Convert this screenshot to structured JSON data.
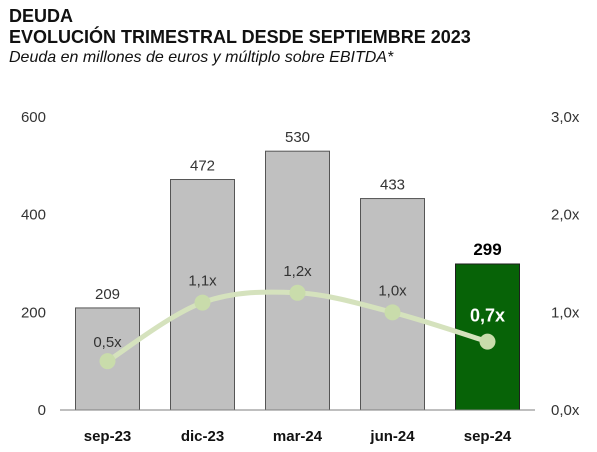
{
  "header": {
    "line1": "DEUDA",
    "line2": "EVOLUCIÓN TRIMESTRAL DESDE SEPTIEMBRE 2023",
    "subtitle": "Deuda en millones de euros y múltiplo sobre EBITDA*"
  },
  "chart_data": {
    "type": "bar",
    "categories": [
      "sep-23",
      "dic-23",
      "mar-24",
      "jun-24",
      "sep-24"
    ],
    "series": [
      {
        "values": [
          209,
          472,
          530,
          433,
          299
        ],
        "labels": [
          "209",
          "472",
          "530",
          "433",
          "299"
        ],
        "axis": "left"
      },
      {
        "type": "line",
        "values": [
          0.5,
          1.1,
          1.2,
          1.0,
          0.7
        ],
        "labels": [
          "0,5x",
          "1,1x",
          "1,2x",
          "1,0x",
          "0,7x"
        ],
        "axis": "right"
      }
    ],
    "y_left": {
      "range": [
        0,
        600
      ],
      "ticks": [
        "0",
        "200",
        "400",
        "600"
      ]
    },
    "y_right": {
      "range": [
        0,
        3.0
      ],
      "ticks": [
        "0,0x",
        "1,0x",
        "2,0x",
        "3,0x"
      ]
    },
    "highlight_index": 4,
    "grid": false,
    "legend": "none",
    "colors": {
      "bar": "#c0c0c0",
      "bar_border": "#555555",
      "bar_highlight": "#076307",
      "line": "#d5e2bd",
      "marker": "#c9dcab",
      "text": "#333333",
      "label_highlight_text": "#ffffff"
    }
  }
}
